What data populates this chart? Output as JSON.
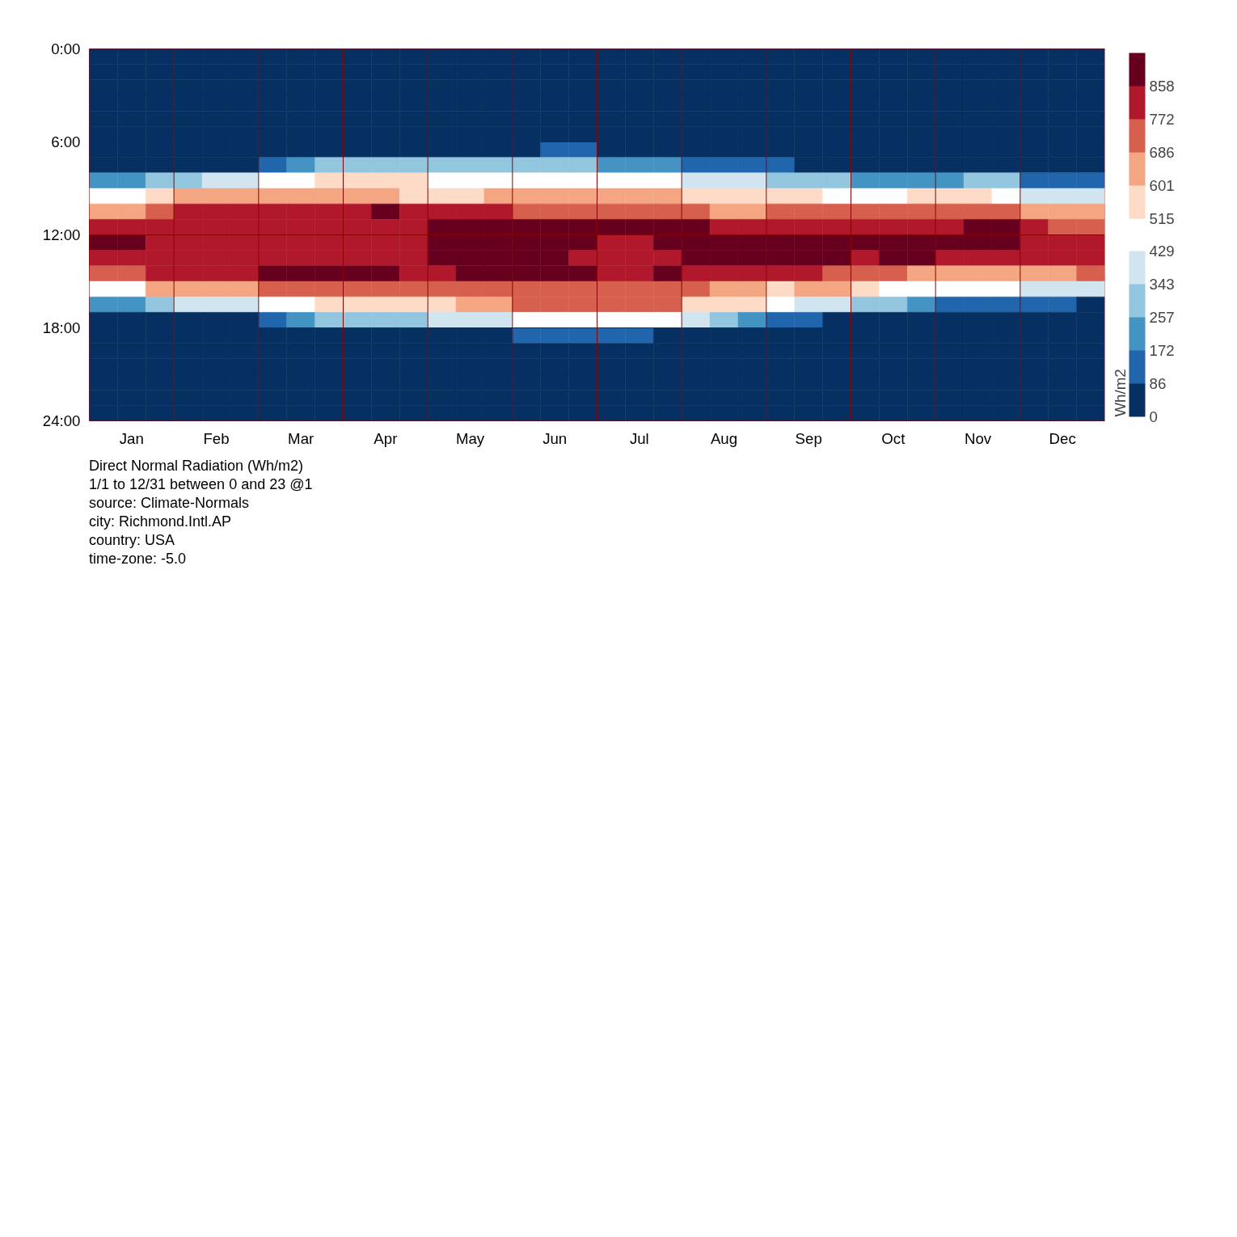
{
  "chart_data": {
    "type": "heatmap",
    "clabel": "Wh/m2",
    "categories": [
      null,
      "Jan",
      null,
      null,
      "Feb",
      null,
      null,
      "Mar",
      null,
      null,
      "Apr",
      null,
      null,
      "May",
      null,
      null,
      "Jun",
      null,
      null,
      "Jul",
      null,
      null,
      "Aug",
      null,
      null,
      "Sep",
      null,
      null,
      "Oct",
      null,
      null,
      "Nov",
      null,
      null,
      "Dec",
      null
    ],
    "ylim": [
      24,
      0
    ],
    "yticks": [
      {
        "value": 0,
        "label": "0:00"
      },
      {
        "value": 6,
        "label": "6:00"
      },
      {
        "value": 12,
        "label": "12:00"
      },
      {
        "value": 18,
        "label": "18:00"
      },
      {
        "value": 24,
        "label": "24:00"
      }
    ],
    "grid": true,
    "clim": [
      0,
      944
    ],
    "cticks": [
      0,
      86,
      172,
      257,
      343,
      429,
      515,
      601,
      686,
      772,
      858
    ],
    "colors": [
      "#053061",
      "#2166ac",
      "#4393c3",
      "#92c5de",
      "#d1e5f0",
      "#ffffff",
      "#fddbc7",
      "#f4a582",
      "#d6604d",
      "#b2182b",
      "#67001f"
    ],
    "cells": [
      [
        0,
        0,
        0,
        0,
        0,
        0,
        0,
        0,
        0,
        0,
        0,
        0,
        0,
        0,
        0,
        0,
        0,
        0,
        0,
        0,
        0,
        0,
        0,
        0,
        0,
        0,
        0,
        0,
        0,
        0,
        0,
        0,
        0,
        0,
        0,
        0
      ],
      [
        0,
        0,
        0,
        0,
        0,
        0,
        0,
        0,
        0,
        0,
        0,
        0,
        0,
        0,
        0,
        0,
        0,
        0,
        0,
        0,
        0,
        0,
        0,
        0,
        0,
        0,
        0,
        0,
        0,
        0,
        0,
        0,
        0,
        0,
        0,
        0
      ],
      [
        0,
        0,
        0,
        0,
        0,
        0,
        0,
        0,
        0,
        0,
        0,
        0,
        0,
        0,
        0,
        0,
        0,
        0,
        0,
        0,
        0,
        0,
        0,
        0,
        0,
        0,
        0,
        0,
        0,
        0,
        0,
        0,
        0,
        0,
        0,
        0
      ],
      [
        0,
        0,
        0,
        0,
        0,
        0,
        0,
        0,
        0,
        0,
        0,
        0,
        0,
        0,
        0,
        0,
        0,
        0,
        0,
        0,
        0,
        0,
        0,
        0,
        0,
        0,
        0,
        0,
        0,
        0,
        0,
        0,
        0,
        0,
        0,
        0
      ],
      [
        0,
        0,
        0,
        0,
        0,
        0,
        0,
        0,
        0,
        0,
        0,
        0,
        0,
        0,
        0,
        0,
        0,
        0,
        0,
        0,
        0,
        0,
        0,
        0,
        0,
        0,
        0,
        0,
        0,
        0,
        0,
        0,
        0,
        0,
        0,
        0
      ],
      [
        0,
        0,
        0,
        0,
        0,
        0,
        0,
        0,
        0,
        0,
        0,
        0,
        0,
        0,
        0,
        0,
        0,
        0,
        0,
        0,
        0,
        0,
        0,
        0,
        0,
        0,
        0,
        0,
        0,
        0,
        0,
        0,
        0,
        0,
        0,
        0
      ],
      [
        0,
        0,
        0,
        0,
        0,
        0,
        0,
        0,
        0,
        40,
        60,
        60,
        60,
        60,
        80,
        80,
        90,
        90,
        60,
        40,
        20,
        0,
        0,
        0,
        0,
        0,
        0,
        0,
        0,
        0,
        0,
        0,
        0,
        0,
        0,
        0
      ],
      [
        0,
        0,
        0,
        0,
        40,
        60,
        130,
        215,
        300,
        300,
        300,
        300,
        300,
        300,
        300,
        300,
        300,
        300,
        215,
        215,
        215,
        130,
        130,
        130,
        130,
        60,
        40,
        40,
        40,
        40,
        40,
        40,
        0,
        0,
        0,
        0
      ],
      [
        215,
        215,
        300,
        300,
        385,
        385,
        470,
        470,
        555,
        555,
        555,
        555,
        470,
        470,
        470,
        470,
        470,
        470,
        470,
        470,
        470,
        385,
        385,
        385,
        300,
        300,
        300,
        215,
        215,
        215,
        215,
        300,
        300,
        130,
        130,
        130
      ],
      [
        470,
        470,
        555,
        640,
        640,
        640,
        640,
        640,
        640,
        640,
        640,
        555,
        555,
        555,
        640,
        640,
        640,
        640,
        640,
        640,
        640,
        555,
        555,
        555,
        555,
        555,
        470,
        470,
        470,
        555,
        555,
        555,
        470,
        385,
        385,
        385
      ],
      [
        640,
        640,
        730,
        815,
        815,
        815,
        815,
        815,
        815,
        815,
        900,
        815,
        815,
        815,
        815,
        730,
        730,
        730,
        730,
        730,
        730,
        730,
        640,
        640,
        730,
        730,
        730,
        730,
        730,
        730,
        730,
        730,
        730,
        640,
        640,
        640
      ],
      [
        815,
        815,
        815,
        815,
        815,
        815,
        815,
        815,
        815,
        815,
        815,
        815,
        900,
        900,
        900,
        900,
        900,
        900,
        900,
        900,
        900,
        900,
        815,
        815,
        815,
        815,
        815,
        815,
        815,
        815,
        815,
        900,
        900,
        815,
        730,
        730
      ],
      [
        900,
        900,
        815,
        815,
        815,
        815,
        815,
        815,
        815,
        815,
        815,
        815,
        900,
        900,
        900,
        900,
        900,
        900,
        815,
        815,
        900,
        900,
        900,
        900,
        900,
        900,
        900,
        900,
        900,
        900,
        900,
        900,
        900,
        815,
        815,
        815
      ],
      [
        815,
        815,
        815,
        815,
        815,
        815,
        815,
        815,
        815,
        815,
        815,
        815,
        900,
        900,
        900,
        900,
        900,
        815,
        815,
        815,
        815,
        900,
        900,
        900,
        900,
        900,
        900,
        815,
        900,
        900,
        815,
        815,
        815,
        815,
        815,
        815
      ],
      [
        730,
        730,
        815,
        815,
        815,
        815,
        900,
        900,
        900,
        900,
        900,
        815,
        815,
        900,
        900,
        900,
        900,
        900,
        815,
        815,
        900,
        815,
        815,
        815,
        815,
        815,
        730,
        730,
        730,
        640,
        640,
        640,
        640,
        640,
        640,
        730
      ],
      [
        470,
        470,
        640,
        640,
        640,
        640,
        730,
        730,
        730,
        730,
        730,
        730,
        730,
        730,
        730,
        730,
        730,
        730,
        730,
        730,
        730,
        730,
        640,
        640,
        555,
        640,
        640,
        555,
        470,
        470,
        470,
        470,
        470,
        385,
        385,
        385
      ],
      [
        215,
        215,
        300,
        385,
        385,
        385,
        470,
        470,
        555,
        555,
        555,
        555,
        555,
        640,
        640,
        730,
        730,
        730,
        730,
        730,
        730,
        555,
        555,
        555,
        470,
        385,
        385,
        300,
        300,
        215,
        130,
        130,
        130,
        130,
        130,
        60
      ],
      [
        0,
        0,
        0,
        0,
        0,
        60,
        130,
        215,
        300,
        300,
        300,
        300,
        385,
        385,
        385,
        470,
        470,
        470,
        470,
        470,
        470,
        385,
        300,
        215,
        130,
        130,
        40,
        0,
        0,
        0,
        0,
        0,
        0,
        0,
        0,
        0
      ],
      [
        0,
        0,
        0,
        0,
        0,
        0,
        0,
        0,
        0,
        0,
        0,
        0,
        0,
        40,
        60,
        130,
        130,
        130,
        130,
        130,
        80,
        60,
        40,
        0,
        0,
        0,
        0,
        0,
        0,
        0,
        0,
        0,
        0,
        0,
        0,
        0
      ],
      [
        0,
        0,
        0,
        0,
        0,
        0,
        0,
        0,
        0,
        0,
        0,
        0,
        0,
        0,
        0,
        0,
        0,
        0,
        0,
        0,
        0,
        0,
        0,
        0,
        0,
        0,
        0,
        0,
        0,
        0,
        0,
        0,
        0,
        0,
        0,
        0
      ],
      [
        0,
        0,
        0,
        0,
        0,
        0,
        0,
        0,
        0,
        0,
        0,
        0,
        0,
        0,
        0,
        0,
        0,
        0,
        0,
        0,
        0,
        0,
        0,
        0,
        0,
        0,
        0,
        0,
        0,
        0,
        0,
        0,
        0,
        0,
        0,
        0
      ],
      [
        0,
        0,
        0,
        0,
        0,
        0,
        0,
        0,
        0,
        0,
        0,
        0,
        0,
        0,
        0,
        0,
        0,
        0,
        0,
        0,
        0,
        0,
        0,
        0,
        0,
        0,
        0,
        0,
        0,
        0,
        0,
        0,
        0,
        0,
        0,
        0
      ],
      [
        0,
        0,
        0,
        0,
        0,
        0,
        0,
        0,
        0,
        0,
        0,
        0,
        0,
        0,
        0,
        0,
        0,
        0,
        0,
        0,
        0,
        0,
        0,
        0,
        0,
        0,
        0,
        0,
        0,
        0,
        0,
        0,
        0,
        0,
        0,
        0
      ],
      [
        0,
        0,
        0,
        0,
        0,
        0,
        0,
        0,
        0,
        0,
        0,
        0,
        0,
        0,
        0,
        0,
        0,
        0,
        0,
        0,
        0,
        0,
        0,
        0,
        0,
        0,
        0,
        0,
        0,
        0,
        0,
        0,
        0,
        0,
        0,
        0
      ]
    ],
    "annotations": [
      "Direct Normal Radiation (Wh/m2)",
      "1/1 to 12/31 between 0 and 23 @1",
      "source: Climate-Normals",
      "city: Richmond.Intl.AP",
      "country: USA",
      "time-zone: -5.0"
    ]
  }
}
